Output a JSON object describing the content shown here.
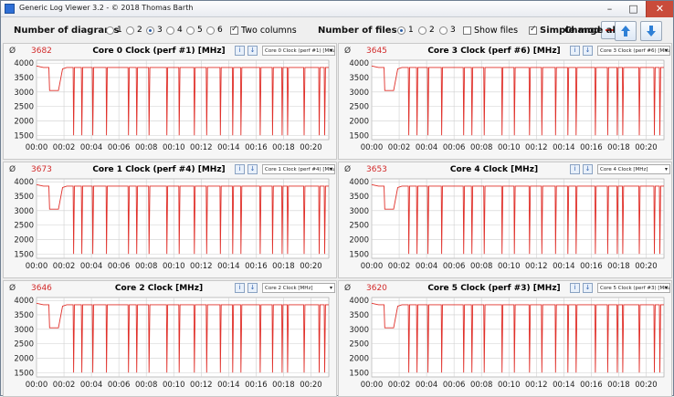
{
  "window": {
    "title": "Generic Log Viewer 3.2 - © 2018 Thomas Barth"
  },
  "toolbar": {
    "diagrams_label": "Number of diagrams",
    "diagram_options": [
      "1",
      "2",
      "3",
      "4",
      "5",
      "6"
    ],
    "diagrams_selected": "3",
    "two_columns_label": "Two columns",
    "two_columns_checked": true,
    "files_label": "Number of files",
    "file_options": [
      "1",
      "2",
      "3"
    ],
    "files_selected": "1",
    "show_files_label": "Show files",
    "show_files_checked": false,
    "simple_mode_label": "Simple mode",
    "simple_mode_checked": true,
    "change_all_label": "Change all"
  },
  "colors": {
    "series": "#e0302a",
    "avg": "#d22a2a",
    "accent": "#2d5fae"
  },
  "panels": [
    {
      "avg_symbol": "Ø",
      "avg": "3682",
      "title": "Core 0 Clock (perf #1) [MHz]",
      "select": "Core 0 Clock (perf #1) [MHz]"
    },
    {
      "avg_symbol": "Ø",
      "avg": "3645",
      "title": "Core 3 Clock (perf #6) [MHz]",
      "select": "Core 3 Clock (perf #6) [MHz]"
    },
    {
      "avg_symbol": "Ø",
      "avg": "3673",
      "title": "Core 1 Clock (perf #4) [MHz]",
      "select": "Core 1 Clock (perf #4) [MHz]"
    },
    {
      "avg_symbol": "Ø",
      "avg": "3653",
      "title": "Core 4 Clock [MHz]",
      "select": "Core 4 Clock [MHz]"
    },
    {
      "avg_symbol": "Ø",
      "avg": "3646",
      "title": "Core 2 Clock [MHz]",
      "select": "Core 2 Clock [MHz]"
    },
    {
      "avg_symbol": "Ø",
      "avg": "3620",
      "title": "Core 5 Clock (perf #3) [MHz]",
      "select": "Core 5 Clock (perf #3) [MHz]"
    }
  ],
  "chart_data": {
    "type": "line",
    "ylim": [
      1350,
      4100
    ],
    "yticks": [
      1500,
      2000,
      2500,
      3000,
      3500,
      4000
    ],
    "xlim_min": [
      0,
      21.3
    ],
    "xticks": [
      "00:00",
      "00:02",
      "00:04",
      "00:06",
      "00:08",
      "00:10",
      "00:12",
      "00:14",
      "00:16",
      "00:18",
      "00:20"
    ],
    "baseline": 3850,
    "dips": [
      1.7,
      2.7,
      3.3,
      4.1,
      5.1,
      6.7,
      7.3,
      8.2,
      9.5,
      10.4,
      11.5,
      12.4,
      13.4,
      14.3,
      14.9,
      16.3,
      17.2,
      17.9,
      18.3,
      19.5,
      20.6,
      21.0
    ],
    "dip_value": 1500,
    "startup_dip": {
      "from": 0.9,
      "to": 1.6,
      "value": 3050
    }
  }
}
